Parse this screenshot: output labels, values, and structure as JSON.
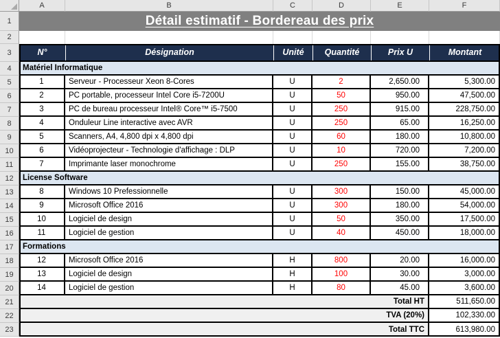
{
  "title": "Détail estimatif - Bordereau des prix",
  "sheet": {
    "column_headers": [
      "A",
      "B",
      "C",
      "D",
      "E",
      "F"
    ],
    "row_headers": [
      "1",
      "2",
      "3",
      "4",
      "5",
      "6",
      "7",
      "8",
      "9",
      "10",
      "11",
      "12",
      "13",
      "14",
      "15",
      "16",
      "17",
      "18",
      "19",
      "20",
      "21",
      "22",
      "23"
    ]
  },
  "table": {
    "headers": {
      "num": "N°",
      "designation": "Désignation",
      "unit": "Unité",
      "qty": "Quantité",
      "unit_price": "Prix U",
      "amount": "Montant"
    },
    "sections": [
      {
        "label": "Matériel Informatique",
        "items": [
          {
            "num": "1",
            "designation": "Serveur - Processeur Xeon 8-Cores",
            "unit": "U",
            "qty": "2",
            "unit_price": "2,650.00",
            "amount": "5,300.00"
          },
          {
            "num": "2",
            "designation": "PC portable, processeur Intel Core i5-7200U",
            "unit": "U",
            "qty": "50",
            "unit_price": "950.00",
            "amount": "47,500.00"
          },
          {
            "num": "3",
            "designation": "PC de bureau processeur Intel® Core™ i5-7500",
            "unit": "U",
            "qty": "250",
            "unit_price": "915.00",
            "amount": "228,750.00"
          },
          {
            "num": "4",
            "designation": "Onduleur Line interactive avec AVR",
            "unit": "U",
            "qty": "250",
            "unit_price": "65.00",
            "amount": "16,250.00"
          },
          {
            "num": "5",
            "designation": "Scanners, A4, 4,800 dpi x 4,800 dpi",
            "unit": "U",
            "qty": "60",
            "unit_price": "180.00",
            "amount": "10,800.00"
          },
          {
            "num": "6",
            "designation": "Vidéoprojecteur - Technologie d'affichage : DLP",
            "unit": "U",
            "qty": "10",
            "unit_price": "720.00",
            "amount": "7,200.00"
          },
          {
            "num": "7",
            "designation": "Imprimante laser monochrome",
            "unit": "U",
            "qty": "250",
            "unit_price": "155.00",
            "amount": "38,750.00"
          }
        ]
      },
      {
        "label": "License Software",
        "items": [
          {
            "num": "8",
            "designation": "Windows 10 Prefessionnelle",
            "unit": "U",
            "qty": "300",
            "unit_price": "150.00",
            "amount": "45,000.00"
          },
          {
            "num": "9",
            "designation": "Microsoft Office 2016",
            "unit": "U",
            "qty": "300",
            "unit_price": "180.00",
            "amount": "54,000.00"
          },
          {
            "num": "10",
            "designation": "Logiciel de design",
            "unit": "U",
            "qty": "50",
            "unit_price": "350.00",
            "amount": "17,500.00"
          },
          {
            "num": "11",
            "designation": "Logiciel de gestion",
            "unit": "U",
            "qty": "40",
            "unit_price": "450.00",
            "amount": "18,000.00"
          }
        ]
      },
      {
        "label": "Formations",
        "items": [
          {
            "num": "12",
            "designation": "Microsoft Office 2016",
            "unit": "H",
            "qty": "800",
            "unit_price": "20.00",
            "amount": "16,000.00"
          },
          {
            "num": "13",
            "designation": "Logiciel de design",
            "unit": "H",
            "qty": "100",
            "unit_price": "30.00",
            "amount": "3,000.00"
          },
          {
            "num": "14",
            "designation": "Logiciel de gestion",
            "unit": "H",
            "qty": "80",
            "unit_price": "45.00",
            "amount": "3,600.00"
          }
        ]
      }
    ],
    "totals": [
      {
        "label": "Total HT",
        "value": "511,650.00"
      },
      {
        "label": "TVA (20%)",
        "value": "102,330.00"
      },
      {
        "label": "Total TTC",
        "value": "613,980.00"
      }
    ]
  },
  "colors": {
    "title_bg": "#808080",
    "table_header_bg": "#1E2F4D",
    "section_bg": "#DCE6F1",
    "totals_label_bg": "#F0F0F0",
    "quantity_text": "#FF0000",
    "border": "#000000"
  }
}
